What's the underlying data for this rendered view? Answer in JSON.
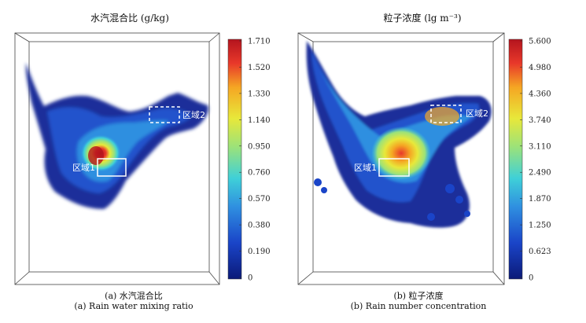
{
  "chart_data": [
    {
      "type": "heatmap",
      "panel_title": "水汽混合比 (g/kg)",
      "caption_cn": "(a) 水汽混合比",
      "caption_en": "(a) Rain water mixing ratio",
      "colorbar_ticks": [
        "1.710",
        "1.520",
        "1.330",
        "1.140",
        "0.950",
        "0.760",
        "0.570",
        "0.380",
        "0.190",
        "0"
      ],
      "colorbar_range": [
        0,
        1.71
      ],
      "regions": [
        {
          "label": "区域1",
          "style": "solid"
        },
        {
          "label": "区域2",
          "style": "dashed"
        }
      ]
    },
    {
      "type": "heatmap",
      "panel_title": "粒子浓度 (lg m⁻³)",
      "caption_cn": "(b) 粒子浓度",
      "caption_en": "(b) Rain number concentration",
      "colorbar_ticks": [
        "5.600",
        "4.980",
        "4.360",
        "3.740",
        "3.110",
        "2.490",
        "1.870",
        "1.250",
        "0.623",
        "0"
      ],
      "colorbar_range": [
        0,
        5.6
      ],
      "regions": [
        {
          "label": "区域1",
          "style": "solid"
        },
        {
          "label": "区域2",
          "style": "dashed"
        }
      ]
    }
  ],
  "colors": {
    "scale": [
      "#0b1a78",
      "#1a44c8",
      "#2f8fe0",
      "#3fd0d8",
      "#9be27a",
      "#e8e83a",
      "#f5a623",
      "#e8382a",
      "#b4141e"
    ]
  }
}
